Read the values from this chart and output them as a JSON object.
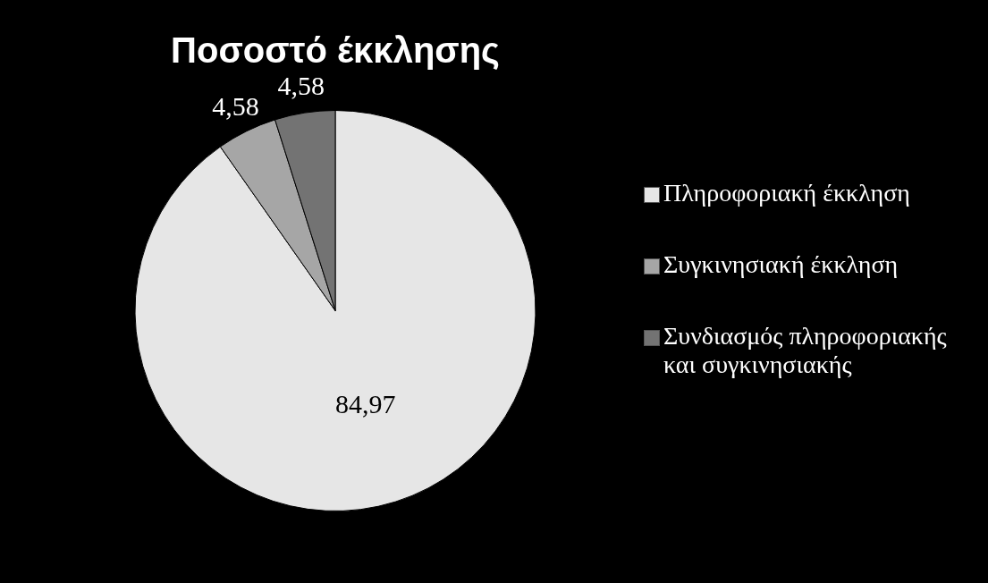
{
  "chart_data": {
    "type": "pie",
    "title": "Ποσοστό έκκλησης",
    "categories": [
      "Πληροφοριακή έκκληση",
      "Συγκινησιακή έκκληση",
      "Συνδιασμός πληροφοριακής και συγκινησιακής"
    ],
    "values": [
      84.97,
      4.58,
      4.58
    ],
    "value_labels": [
      "84,97",
      "4,58",
      "4,58"
    ],
    "colors": [
      "#e6e6e6",
      "#a6a6a6",
      "#737373"
    ],
    "legend": "right"
  }
}
